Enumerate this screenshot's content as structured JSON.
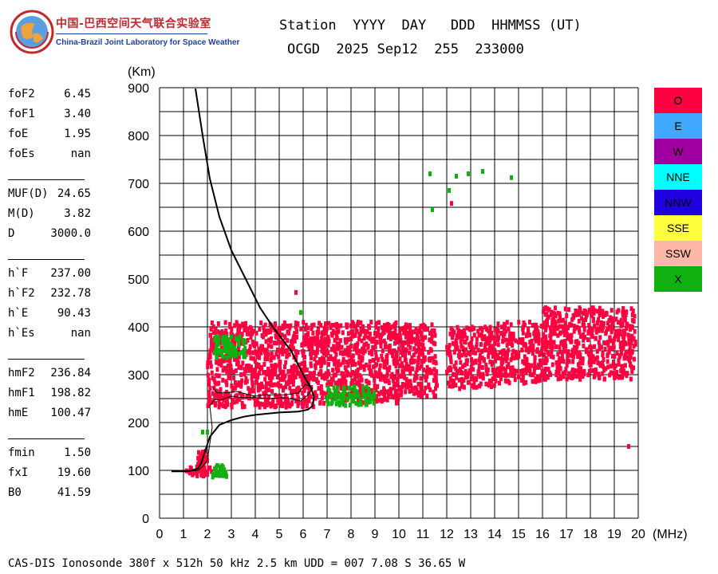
{
  "logo": {
    "zh_text": "中国-巴西空间天气联合实验室",
    "en_text": "China-Brazil Joint Laboratory for Space Weather"
  },
  "header": {
    "line1": "Station  YYYY  DAY   DDD  HHMMSS (UT)",
    "line2": "OCGD  2025 Sep12  255  233000"
  },
  "params": {
    "group1": [
      {
        "name": "foF2",
        "value": "6.45"
      },
      {
        "name": "foF1",
        "value": "3.40"
      },
      {
        "name": "foE",
        "value": "1.95"
      },
      {
        "name": "foEs",
        "value": "nan"
      }
    ],
    "group2": [
      {
        "name": "MUF(D)",
        "value": "24.65"
      },
      {
        "name": "M(D)",
        "value": "3.82"
      },
      {
        "name": "D",
        "value": "3000.0"
      }
    ],
    "group3": [
      {
        "name": "h`F",
        "value": "237.00"
      },
      {
        "name": "h`F2",
        "value": "232.78"
      },
      {
        "name": "h`E",
        "value": "90.43"
      },
      {
        "name": "h`Es",
        "value": "nan"
      }
    ],
    "group4": [
      {
        "name": "hmF2",
        "value": "236.84"
      },
      {
        "name": "hmF1",
        "value": "198.82"
      },
      {
        "name": "hmE",
        "value": "100.47"
      }
    ],
    "group5": [
      {
        "name": "fmin",
        "value": "1.50"
      },
      {
        "name": "fxI",
        "value": "19.60"
      },
      {
        "name": "B0",
        "value": "41.59"
      }
    ]
  },
  "legend": [
    {
      "label": "O",
      "color": "#ff0040"
    },
    {
      "label": "E",
      "color": "#40a8ff"
    },
    {
      "label": "W",
      "color": "#a000a0"
    },
    {
      "label": "NNE",
      "color": "#00ffff"
    },
    {
      "label": "NNW",
      "color": "#2000e0"
    },
    {
      "label": "SSE",
      "color": "#ffff40"
    },
    {
      "label": "SSW",
      "color": "#ffb8a8"
    },
    {
      "label": "X",
      "color": "#10b010"
    }
  ],
  "footer": "CAS-DIS Ionosonde 380f x 512h 50 kHz 2.5 km UDD = 007 7.08 S 36.65 W",
  "chart_data": {
    "type": "scatter",
    "ylabel": "(Km)",
    "xlabel": "(MHz)",
    "xlim": [
      0,
      20
    ],
    "ylim": [
      0,
      900
    ],
    "xticks": [
      0,
      1,
      2,
      3,
      4,
      5,
      6,
      7,
      8,
      9,
      10,
      11,
      12,
      13,
      14,
      15,
      16,
      17,
      18,
      19,
      20
    ],
    "yticks": [
      0,
      100,
      200,
      300,
      400,
      500,
      600,
      700,
      800,
      900
    ],
    "grid": true,
    "series": [
      {
        "name": "O",
        "color": "#ff0040",
        "regions": [
          {
            "x": [
              1.1,
              2.2
            ],
            "y": [
              88,
              108
            ]
          },
          {
            "x": [
              1.6,
              2.0
            ],
            "y": [
              100,
              140
            ]
          },
          {
            "x": [
              2.0,
              6.5
            ],
            "y": [
              232,
              410
            ]
          },
          {
            "x": [
              6.5,
              10.0
            ],
            "y": [
              240,
              410
            ]
          },
          {
            "x": [
              10.0,
              11.6
            ],
            "y": [
              255,
              405
            ]
          },
          {
            "x": [
              12.0,
              14.0
            ],
            "y": [
              270,
              400
            ]
          },
          {
            "x": [
              14.0,
              16.0
            ],
            "y": [
              282,
              410
            ]
          },
          {
            "x": [
              16.0,
              19.9
            ],
            "y": [
              290,
              440
            ]
          }
        ],
        "points": [
          [
            5.7,
            472
          ],
          [
            12.2,
            658
          ],
          [
            19.6,
            150
          ]
        ]
      },
      {
        "name": "X",
        "color": "#10b010",
        "regions": [
          {
            "x": [
              2.2,
              2.8
            ],
            "y": [
              86,
              110
            ]
          },
          {
            "x": [
              2.3,
              3.6
            ],
            "y": [
              335,
              380
            ]
          },
          {
            "x": [
              7.0,
              9.0
            ],
            "y": [
              235,
              275
            ]
          }
        ],
        "points": [
          [
            1.8,
            180
          ],
          [
            2.0,
            180
          ],
          [
            5.9,
            430
          ],
          [
            11.3,
            720
          ],
          [
            11.4,
            645
          ],
          [
            12.1,
            685
          ],
          [
            12.4,
            715
          ],
          [
            12.9,
            720
          ],
          [
            13.5,
            725
          ],
          [
            14.7,
            712
          ]
        ]
      }
    ],
    "profile_thick": [
      [
        0.5,
        98
      ],
      [
        1.0,
        98
      ],
      [
        1.3,
        99
      ],
      [
        1.6,
        104
      ],
      [
        1.75,
        116
      ],
      [
        1.9,
        140
      ],
      [
        2.1,
        170
      ],
      [
        2.5,
        195
      ],
      [
        3.0,
        205
      ],
      [
        3.5,
        212
      ],
      [
        4.0,
        216
      ],
      [
        5.0,
        221
      ],
      [
        5.8,
        223
      ],
      [
        6.2,
        227
      ],
      [
        6.4,
        235
      ],
      [
        6.45,
        255
      ],
      [
        6.3,
        275
      ],
      [
        6.0,
        300
      ],
      [
        5.5,
        350
      ],
      [
        4.8,
        395
      ],
      [
        4.2,
        440
      ],
      [
        3.6,
        500
      ],
      [
        3.0,
        560
      ],
      [
        2.5,
        630
      ],
      [
        2.1,
        710
      ],
      [
        1.8,
        800
      ],
      [
        1.5,
        898
      ]
    ],
    "trace_thin": [
      [
        1.1,
        98
      ],
      [
        1.6,
        100
      ],
      [
        1.8,
        108
      ],
      [
        2.0,
        122
      ],
      [
        2.2,
        190
      ],
      [
        2.1,
        235
      ],
      [
        2.3,
        248
      ],
      [
        2.6,
        248
      ],
      [
        3.0,
        255
      ],
      [
        3.5,
        252
      ],
      [
        4.0,
        252
      ],
      [
        4.6,
        250
      ],
      [
        5.2,
        252
      ],
      [
        5.6,
        248
      ],
      [
        5.9,
        245
      ],
      [
        6.2,
        258
      ],
      [
        6.4,
        272
      ],
      [
        6.1,
        280
      ],
      [
        5.8,
        262
      ],
      [
        5.3,
        258
      ],
      [
        4.8,
        258
      ],
      [
        4.4,
        258
      ],
      [
        4.0,
        255
      ],
      [
        3.6,
        260
      ],
      [
        3.2,
        265
      ],
      [
        2.8,
        262
      ],
      [
        2.4,
        262
      ],
      [
        2.2,
        275
      ]
    ]
  }
}
